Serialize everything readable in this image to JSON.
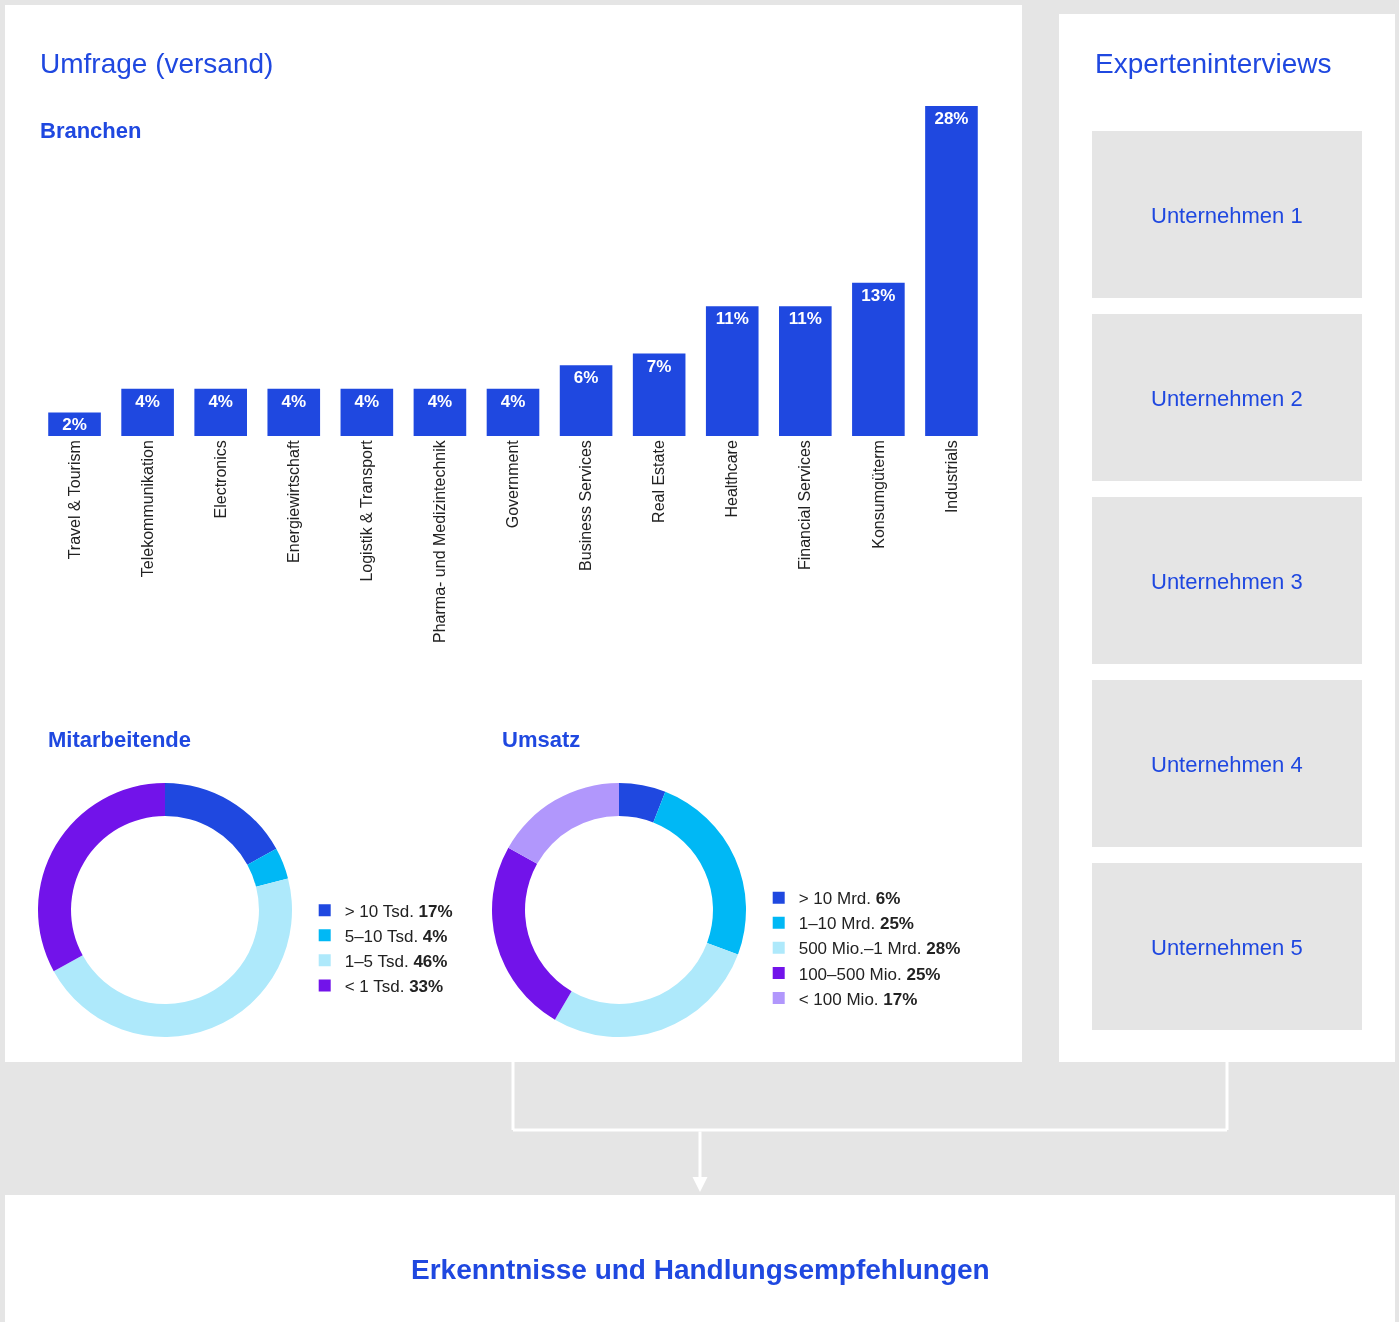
{
  "chart_data": [
    {
      "type": "bar",
      "title": "Umfrage (versand)",
      "subtitle": "Branchen",
      "categories": [
        "Travel & Tourism",
        "Telekommunikation",
        "Electronics",
        "Energiewirtschaft",
        "Logistik & Transport",
        "Pharma- und Medizintechnik",
        "Government",
        "Business Services",
        "Real Estate",
        "Healthcare",
        "Financial Services",
        "Konsumgüterm",
        "Industrials"
      ],
      "values": [
        2,
        4,
        4,
        4,
        4,
        4,
        4,
        6,
        7,
        11,
        11,
        13,
        28
      ],
      "value_labels": [
        "2%",
        "4%",
        "4%",
        "4%",
        "4%",
        "4%",
        "4%",
        "6%",
        "7%",
        "11%",
        "11%",
        "13%",
        "28%"
      ],
      "color": "#1f48e0"
    },
    {
      "type": "donut",
      "title": "Mitarbeitende",
      "legend": "right",
      "categories": [
        "> 10 Tsd.",
        "5–10 Tsd.",
        "1–5 Tsd.",
        "< 1 Tsd."
      ],
      "values": [
        17,
        4,
        46,
        33
      ],
      "value_labels": [
        "17%",
        "4%",
        "46%",
        "33%"
      ],
      "colors": [
        "#1f48e0",
        "#00b8f5",
        "#aee9fb",
        "#7213ea"
      ]
    },
    {
      "type": "donut",
      "title": "Umsatz",
      "legend": "right",
      "categories": [
        "> 10 Mrd.",
        "1–10 Mrd.",
        "500 Mio.–1 Mrd.",
        "100–500 Mio.",
        "< 100 Mio."
      ],
      "values": [
        6,
        25,
        28,
        25,
        17
      ],
      "value_labels": [
        "6%",
        "25%",
        "28%",
        "25%",
        "17%"
      ],
      "colors": [
        "#1f48e0",
        "#00b8f5",
        "#aee9fb",
        "#7213ea",
        "#b197fc"
      ]
    },
    {
      "type": "other",
      "title": "Experteninterviews",
      "annotations": [
        "Unternehmen 1",
        "Unternehmen 2",
        "Unternehmen 3",
        "Unternehmen 4",
        "Unternehmen 5"
      ]
    },
    {
      "type": "other",
      "title": "Erkenntnisse und Handlungsempfehlungen"
    }
  ]
}
